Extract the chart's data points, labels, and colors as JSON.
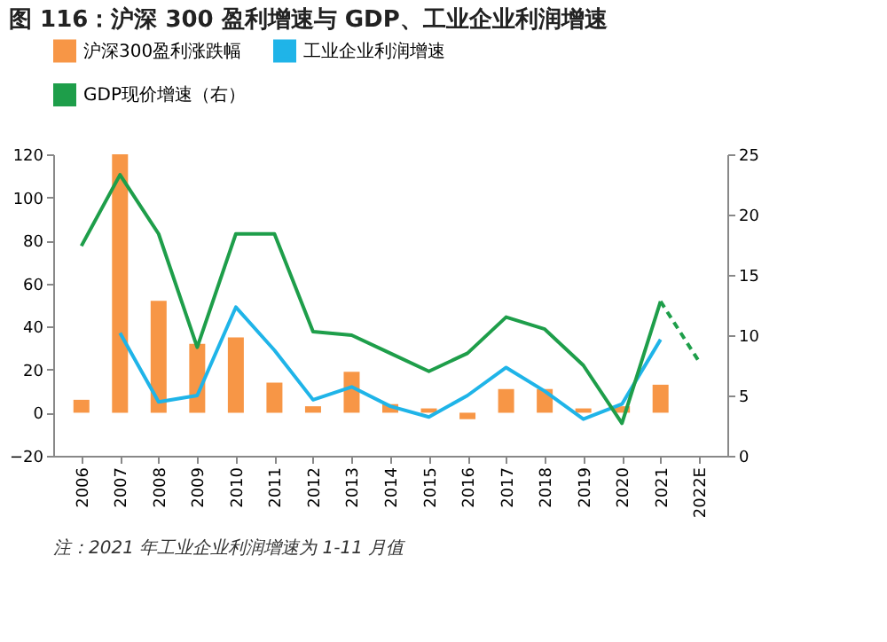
{
  "chart_data": {
    "type": "bar",
    "title": "图 116：沪深 300 盈利增速与 GDP、工业企业利润增速",
    "categories": [
      "2006",
      "2007",
      "2008",
      "2009",
      "2010",
      "2011",
      "2012",
      "2013",
      "2014",
      "2015",
      "2016",
      "2017",
      "2018",
      "2019",
      "2020",
      "2021",
      "2022E"
    ],
    "series": [
      {
        "name": "沪深300盈利涨跌幅",
        "color": "#f79646",
        "values": [
          6,
          120,
          52,
          32,
          35,
          14,
          3,
          19,
          4,
          2,
          -3,
          11,
          11,
          2,
          3,
          13,
          null
        ]
      },
      {
        "name": "工业企业利润增速",
        "type": "line",
        "color": "#1fb4e8",
        "values": [
          null,
          37,
          5,
          8,
          49,
          29,
          6,
          12,
          3,
          -2,
          8,
          21,
          10,
          -3,
          4,
          34,
          null
        ]
      },
      {
        "name": "GDP现价增速（右）",
        "type": "line",
        "axis": "y2",
        "color": "#1e9e4a",
        "values": [
          17.4,
          23.3,
          18.4,
          9,
          18.4,
          18.4,
          10.3,
          10,
          8.5,
          7,
          8.5,
          11.5,
          10.5,
          7.5,
          2.7,
          12.8,
          null
        ]
      },
      {
        "type": "line",
        "axis": "y2",
        "line_style": "dashed",
        "color": "#1e9e4a",
        "values": [
          null,
          null,
          null,
          null,
          null,
          null,
          null,
          null,
          null,
          null,
          null,
          null,
          null,
          null,
          null,
          12.8,
          7.8
        ]
      }
    ],
    "ylim": [
      -20,
      120
    ],
    "yticks": [
      -20,
      0,
      20,
      40,
      60,
      80,
      100,
      120
    ],
    "y2lim": [
      0,
      25
    ],
    "y2ticks": [
      0,
      5,
      10,
      15,
      20,
      25
    ],
    "grid": false,
    "legend": "top",
    "line_style": "solid",
    "annotations": [
      "注：2021 年工业企业利润增速为 1-11 月值"
    ]
  }
}
